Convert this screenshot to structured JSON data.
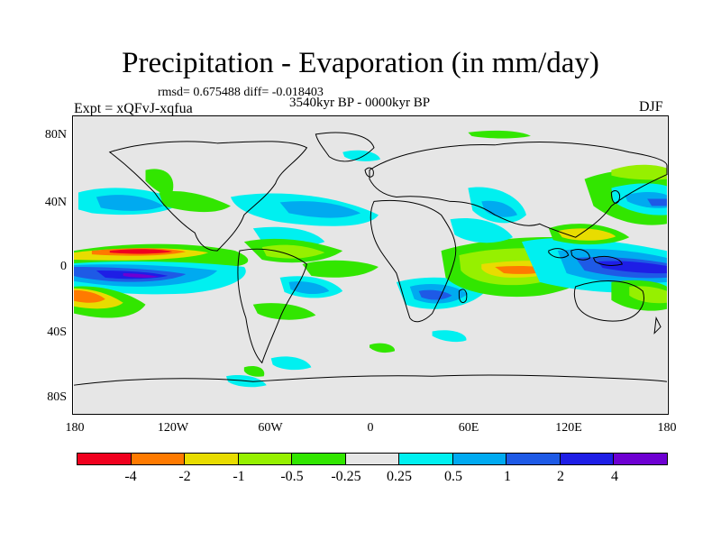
{
  "title": "Precipitation - Evaporation (in mm/day)",
  "stats": "rmsd= 0.675488 diff= -0.018403",
  "period": "3540kyr BP - 0000kyr BP",
  "experiment": "Expt = xQFvJ-xqfua",
  "season": "DJF",
  "y_axis": {
    "labels": [
      "80N",
      "40N",
      "0",
      "40S",
      "80S"
    ]
  },
  "x_axis": {
    "labels": [
      "180",
      "120W",
      "60W",
      "0",
      "60E",
      "120E",
      "180"
    ]
  },
  "colorbar": {
    "colors": [
      "#f0001e",
      "#ff7a00",
      "#e8dc00",
      "#96f000",
      "#32e600",
      "#e6e6e6",
      "#00f0f0",
      "#00aaf0",
      "#1e5ae6",
      "#1e1ee6",
      "#6e00d2"
    ],
    "labels": [
      "-4",
      "-2",
      "-1",
      "-0.5",
      "-0.25",
      "0.25",
      "0.5",
      "1",
      "2",
      "4"
    ]
  },
  "colors": {
    "land_bg": "#e6e6e6",
    "coast": "#000000"
  }
}
